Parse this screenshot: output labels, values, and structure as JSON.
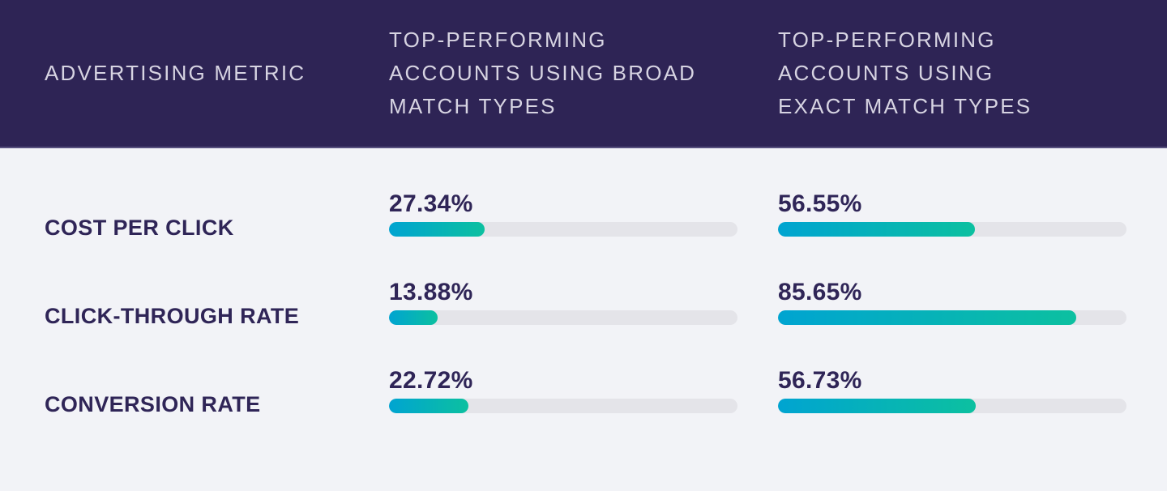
{
  "theme": {
    "header_bg": "#2E2455",
    "header_border": "#57507E",
    "header_text": "#D7D4E2",
    "body_bg": "#F2F3F7",
    "label_color": "#2F2557",
    "track_color": "#E4E4E9",
    "bar_gradient_start": "#00A4D1",
    "bar_gradient_end": "#0CC0A0"
  },
  "header": {
    "col1_lines": [
      "ADVERTISING METRIC"
    ],
    "col2_lines": [
      "TOP-PERFORMING",
      "ACCOUNTS USING BROAD",
      "MATCH TYPES"
    ],
    "col3_lines": [
      "TOP-PERFORMING",
      "ACCOUNTS USING",
      "EXACT MATCH TYPES"
    ]
  },
  "rows": [
    {
      "metric": "COST PER CLICK",
      "broad_label": "27.34%",
      "broad_pct": 27.34,
      "exact_label": "56.55%",
      "exact_pct": 56.55
    },
    {
      "metric": "CLICK-THROUGH RATE",
      "broad_label": "13.88%",
      "broad_pct": 13.88,
      "exact_label": "85.65%",
      "exact_pct": 85.65
    },
    {
      "metric": "CONVERSION RATE",
      "broad_label": "22.72%",
      "broad_pct": 22.72,
      "exact_label": "56.73%",
      "exact_pct": 56.73
    }
  ],
  "chart_data": {
    "type": "bar",
    "orientation": "horizontal",
    "title": "",
    "categories": [
      "COST PER CLICK",
      "CLICK-THROUGH RATE",
      "CONVERSION RATE"
    ],
    "series": [
      {
        "name": "TOP-PERFORMING ACCOUNTS USING BROAD MATCH TYPES",
        "values": [
          27.34,
          13.88,
          22.72
        ]
      },
      {
        "name": "TOP-PERFORMING ACCOUNTS USING EXACT MATCH TYPES",
        "values": [
          56.55,
          85.65,
          56.73
        ]
      }
    ],
    "value_unit": "%",
    "value_range": [
      0,
      100
    ],
    "xlabel": "",
    "ylabel": "ADVERTISING METRIC",
    "grid": false,
    "legend_position": "header-row"
  }
}
